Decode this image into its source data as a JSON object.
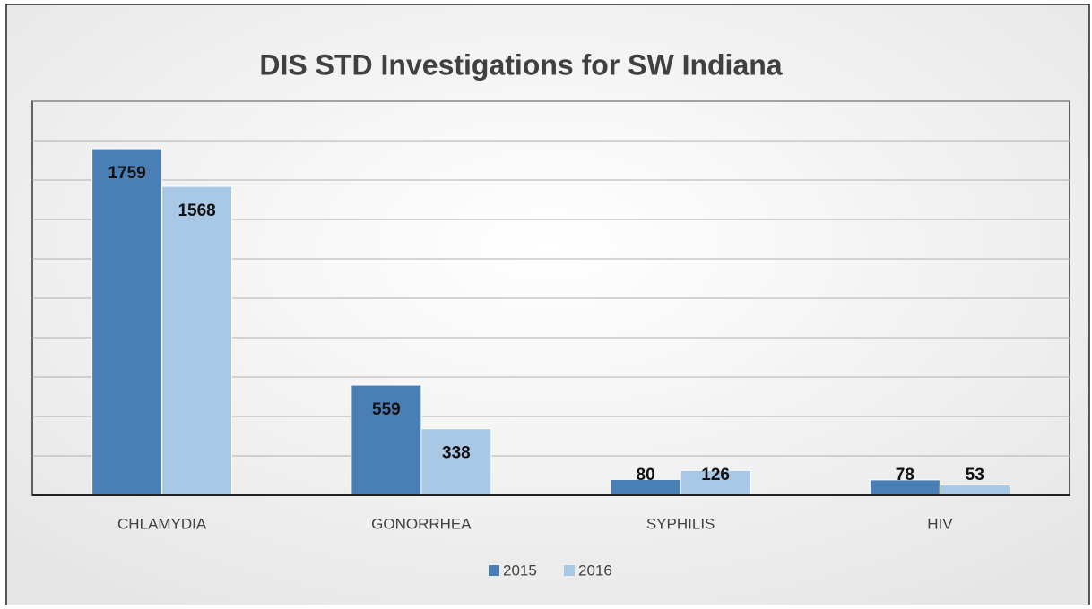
{
  "chart_data": {
    "type": "bar",
    "title": "DIS STD Investigations for SW Indiana",
    "categories": [
      "CHLAMYDIA",
      "GONORRHEA",
      "SYPHILIS",
      "HIV"
    ],
    "series": [
      {
        "name": "2015",
        "color": "#4a7fb6",
        "values": [
          1759,
          559,
          80,
          78
        ]
      },
      {
        "name": "2016",
        "color": "#a8c8e6",
        "values": [
          1568,
          338,
          126,
          53
        ]
      }
    ],
    "ylim": [
      0,
      2000
    ],
    "yticks": [
      0,
      200,
      400,
      600,
      800,
      1000,
      1200,
      1400,
      1600,
      1800,
      2000
    ],
    "grid": true,
    "legend": "bottom"
  }
}
